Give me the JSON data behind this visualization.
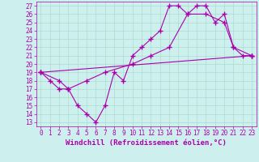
{
  "xlabel": "Windchill (Refroidissement éolien,°C)",
  "xlim": [
    -0.5,
    23.5
  ],
  "ylim": [
    12.5,
    27.5
  ],
  "xticks": [
    0,
    1,
    2,
    3,
    4,
    5,
    6,
    7,
    8,
    9,
    10,
    11,
    12,
    13,
    14,
    15,
    16,
    17,
    18,
    19,
    20,
    21,
    22,
    23
  ],
  "yticks": [
    13,
    14,
    15,
    16,
    17,
    18,
    19,
    20,
    21,
    22,
    23,
    24,
    25,
    26,
    27
  ],
  "bg_color": "#cdf0ee",
  "line_color": "#aa00aa",
  "grid_color": "#aaddcc",
  "line1_x": [
    0,
    1,
    2,
    3,
    4,
    5,
    6,
    7,
    8,
    9,
    10,
    11,
    12,
    13,
    14,
    15,
    16,
    17,
    18,
    19,
    20,
    21,
    22,
    23
  ],
  "line1_y": [
    19,
    18,
    17,
    17,
    15,
    14,
    13,
    15,
    19,
    18,
    21,
    22,
    23,
    24,
    27,
    27,
    26,
    27,
    27,
    25,
    26,
    22,
    21,
    21
  ],
  "line2_x": [
    0,
    2,
    3,
    5,
    7,
    10,
    12,
    14,
    16,
    18,
    20,
    21,
    23
  ],
  "line2_y": [
    19,
    18,
    17,
    18,
    19,
    20,
    21,
    22,
    26,
    26,
    25,
    22,
    21
  ],
  "line3_x": [
    0,
    23
  ],
  "line3_y": [
    19,
    21
  ],
  "marker": "+",
  "markersize": 4,
  "linewidth": 0.8,
  "xlabel_fontsize": 6.5,
  "tick_fontsize": 5.5
}
